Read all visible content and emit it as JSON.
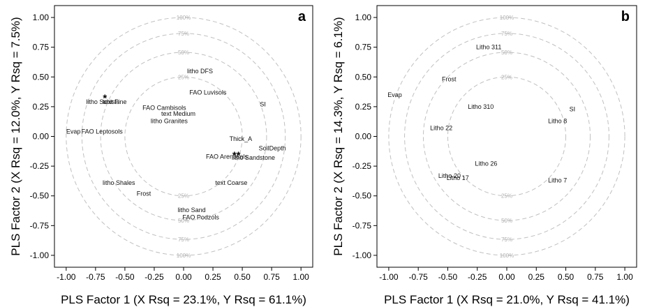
{
  "chart_data": [
    {
      "type": "scatter",
      "panel_label": "a",
      "xlabel": "PLS Factor 1 (X Rsq = 23.1%, Y Rsq = 61.1%)",
      "ylabel": "PLS Factor 2 (X Rsq = 12.0%, Y Rsq = 7.5%)",
      "xlim": [
        -1.1,
        1.1
      ],
      "ylim": [
        -1.1,
        1.1
      ],
      "xticks": [
        "-1.00",
        "-0.75",
        "-0.50",
        "-0.25",
        "0.00",
        "0.25",
        "0.50",
        "0.75",
        "1.00"
      ],
      "yticks": [
        "1.00",
        "0.75",
        "0.50",
        "0.25",
        "0.00",
        "-0.25",
        "-0.50",
        "-0.75",
        "-1.00"
      ],
      "grid": false,
      "reference_circles": [
        {
          "radius": 0.5,
          "label": "25%"
        },
        {
          "radius": 0.707,
          "label": "50%"
        },
        {
          "radius": 0.866,
          "label": "75%"
        },
        {
          "radius": 1.0,
          "label": "100%"
        }
      ],
      "points": [
        {
          "label": "litho DFS",
          "x": 0.03,
          "y": 0.55
        },
        {
          "label": "FAO Luvisols",
          "x": 0.05,
          "y": 0.37
        },
        {
          "label": "SI",
          "x": 0.65,
          "y": 0.27
        },
        {
          "label": "litho Schists",
          "x": -0.83,
          "y": 0.29
        },
        {
          "label": "text Fine",
          "x": -0.69,
          "y": 0.29
        },
        {
          "label": "FAO Cambisols",
          "x": -0.35,
          "y": 0.24
        },
        {
          "label": "text Medium",
          "x": -0.19,
          "y": 0.19
        },
        {
          "label": "litho Granites",
          "x": -0.28,
          "y": 0.13
        },
        {
          "label": "FAO Leptosols",
          "x": -0.87,
          "y": 0.04
        },
        {
          "label": "Evap",
          "x": -1.0,
          "y": 0.04
        },
        {
          "label": "Thick_A",
          "x": 0.39,
          "y": -0.02
        },
        {
          "label": "SoilDepth",
          "x": 0.64,
          "y": -0.1
        },
        {
          "label": "FAO Arenosols",
          "x": 0.19,
          "y": -0.17
        },
        {
          "label": "litho Sandstone",
          "x": 0.41,
          "y": -0.18
        },
        {
          "label": "litho Shales",
          "x": -0.69,
          "y": -0.39
        },
        {
          "label": "Frost",
          "x": -0.4,
          "y": -0.48
        },
        {
          "label": "text Coarse",
          "x": 0.27,
          "y": -0.39
        },
        {
          "label": "litho Sand",
          "x": -0.05,
          "y": -0.62
        },
        {
          "label": "FAO Podzols",
          "x": -0.01,
          "y": -0.68
        }
      ],
      "markers": [
        {
          "symbol": "*",
          "x": -0.67,
          "y": 0.34
        },
        {
          "symbol": "**",
          "x": 0.45,
          "y": -0.14
        }
      ]
    },
    {
      "type": "scatter",
      "panel_label": "b",
      "xlabel": "PLS Factor 1 (X Rsq = 21.0%, Y Rsq = 41.1%)",
      "ylabel": "PLS Factor 2 (X Rsq = 14.3%, Y Rsq = 6.1%)",
      "xlim": [
        -1.1,
        1.1
      ],
      "ylim": [
        -1.1,
        1.1
      ],
      "xticks": [
        "-1.00",
        "-0.75",
        "-0.50",
        "-0.25",
        "0.00",
        "0.25",
        "0.50",
        "0.75",
        "1.00"
      ],
      "yticks": [
        "1.00",
        "0.75",
        "0.50",
        "0.25",
        "0.00",
        "-0.25",
        "-0.50",
        "-0.75",
        "-1.00"
      ],
      "grid": false,
      "reference_circles": [
        {
          "radius": 0.5,
          "label": "25%"
        },
        {
          "radius": 0.707,
          "label": "50%"
        },
        {
          "radius": 0.866,
          "label": "75%"
        },
        {
          "radius": 1.0,
          "label": "100%"
        }
      ],
      "points": [
        {
          "label": "Litho 311",
          "x": -0.26,
          "y": 0.75
        },
        {
          "label": "Frost",
          "x": -0.55,
          "y": 0.48
        },
        {
          "label": "Evap",
          "x": -1.01,
          "y": 0.35
        },
        {
          "label": "Litho 310",
          "x": -0.33,
          "y": 0.25
        },
        {
          "label": "SI",
          "x": 0.53,
          "y": 0.23
        },
        {
          "label": "Litho 8",
          "x": 0.35,
          "y": 0.13
        },
        {
          "label": "Litho 22",
          "x": -0.65,
          "y": 0.07
        },
        {
          "label": "Litho 26",
          "x": -0.27,
          "y": -0.23
        },
        {
          "label": "Litho 20",
          "x": -0.58,
          "y": -0.33
        },
        {
          "label": "Litho 17",
          "x": -0.51,
          "y": -0.35
        },
        {
          "label": "Litho 7",
          "x": 0.35,
          "y": -0.37
        }
      ],
      "markers": []
    }
  ]
}
